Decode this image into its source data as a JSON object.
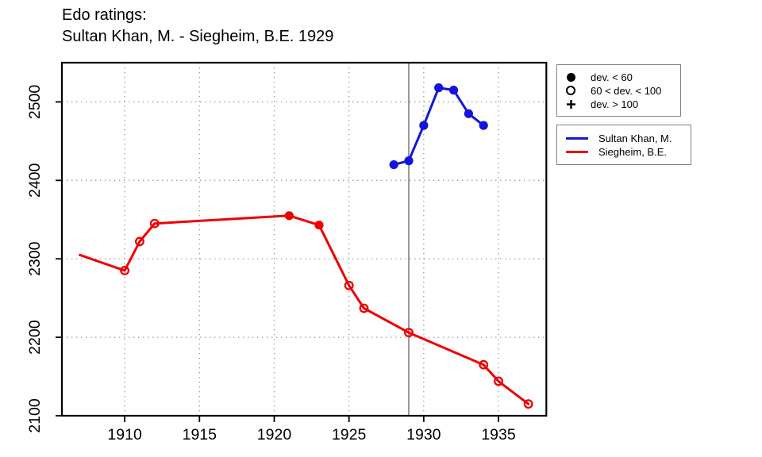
{
  "title": {
    "line1": "Edo ratings:",
    "line2": "Sultan Khan, M. - Siegheim, B.E. 1929"
  },
  "legend_markers": {
    "items": [
      {
        "symbol": "filled-circle",
        "label": "dev. < 60"
      },
      {
        "symbol": "open-circle",
        "label": "60 < dev. < 100"
      },
      {
        "symbol": "plus",
        "label": "dev. > 100"
      }
    ]
  },
  "legend_series": {
    "items": [
      {
        "label": "Sultan Khan, M.",
        "color": "#1414dc"
      },
      {
        "label": "Siegheim, B.E.",
        "color": "#ee0000"
      }
    ]
  },
  "colors": {
    "player1": "#1414dc",
    "player2": "#ee0000",
    "event_line": "#808080",
    "grid": "#999999",
    "axis": "#000000"
  },
  "chart_data": {
    "type": "line",
    "title": "Edo ratings: Sultan Khan, M. - Siegheim, B.E. 1929",
    "xlabel": "",
    "ylabel": "",
    "xlim": [
      1905.8,
      1938.2
    ],
    "ylim": [
      2100,
      2550
    ],
    "x_ticks": [
      1910,
      1915,
      1920,
      1925,
      1930,
      1935
    ],
    "y_ticks": [
      2100,
      2200,
      2300,
      2400,
      2500
    ],
    "grid": "dotted",
    "legend_position": "top-right-outside",
    "event_line_x": 1929,
    "marker_meaning": {
      "filled": "dev. < 60",
      "open": "60 < dev. < 100",
      "plus": "dev. > 100"
    },
    "series": [
      {
        "name": "Sultan Khan, M.",
        "color": "#1414dc",
        "points": [
          {
            "year": 1928,
            "rating": 2420,
            "marker": "filled"
          },
          {
            "year": 1929,
            "rating": 2425,
            "marker": "filled"
          },
          {
            "year": 1930,
            "rating": 2470,
            "marker": "filled"
          },
          {
            "year": 1931,
            "rating": 2518,
            "marker": "filled"
          },
          {
            "year": 1932,
            "rating": 2515,
            "marker": "filled"
          },
          {
            "year": 1933,
            "rating": 2485,
            "marker": "filled"
          },
          {
            "year": 1934,
            "rating": 2470,
            "marker": "filled"
          }
        ]
      },
      {
        "name": "Siegheim, B.E.",
        "color": "#ee0000",
        "points": [
          {
            "year": 1907,
            "rating": 2305,
            "marker": "none"
          },
          {
            "year": 1910,
            "rating": 2285,
            "marker": "open"
          },
          {
            "year": 1911,
            "rating": 2322,
            "marker": "open"
          },
          {
            "year": 1912,
            "rating": 2345,
            "marker": "open"
          },
          {
            "year": 1921,
            "rating": 2355,
            "marker": "filled"
          },
          {
            "year": 1923,
            "rating": 2343,
            "marker": "filled"
          },
          {
            "year": 1925,
            "rating": 2266,
            "marker": "open"
          },
          {
            "year": 1926,
            "rating": 2237,
            "marker": "open"
          },
          {
            "year": 1929,
            "rating": 2206,
            "marker": "open"
          },
          {
            "year": 1934,
            "rating": 2165,
            "marker": "open"
          },
          {
            "year": 1935,
            "rating": 2144,
            "marker": "open"
          },
          {
            "year": 1937,
            "rating": 2115,
            "marker": "open"
          }
        ]
      }
    ]
  }
}
